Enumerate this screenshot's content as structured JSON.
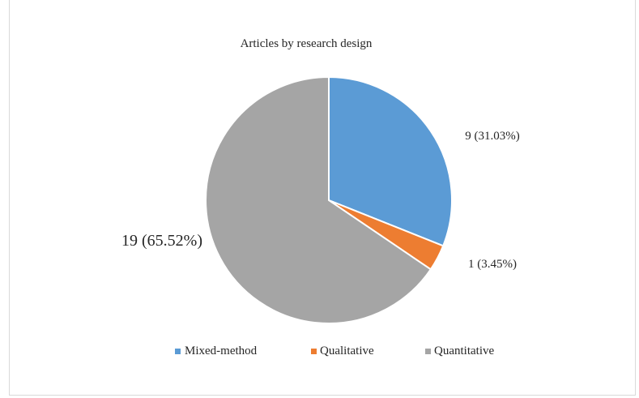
{
  "chart_data": {
    "type": "pie",
    "title": "Articles by research design",
    "categories": [
      "Mixed-method",
      "Qualitative",
      "Quantitative"
    ],
    "values": [
      9,
      1,
      19
    ],
    "percent_labels": [
      "9 (31.03%)",
      "1 (3.45%)",
      "19 (65.52%)"
    ],
    "colors": [
      "#5b9bd5",
      "#ed7d31",
      "#a5a5a5"
    ],
    "legend_position": "bottom",
    "start_angle": "12 o'clock",
    "direction": "clockwise"
  }
}
